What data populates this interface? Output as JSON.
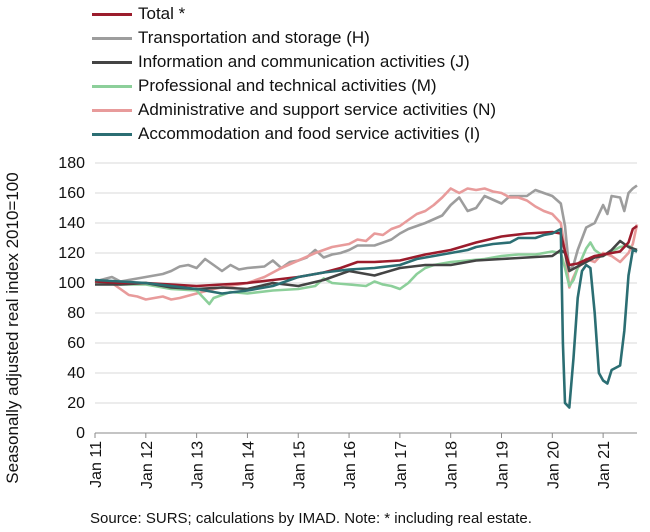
{
  "chart_data": {
    "type": "line",
    "ylabel": "Seasonally adjusted real index 2010=100",
    "xlabel": "",
    "ylim": [
      0,
      180
    ],
    "yticks": [
      "0",
      "20",
      "40",
      "60",
      "80",
      "100",
      "120",
      "140",
      "160",
      "180"
    ],
    "xticks": [
      "Jan 11",
      "Jan 12",
      "Jan 13",
      "Jan 14",
      "Jan 15",
      "Jan 16",
      "Jan 17",
      "Jan 18",
      "Jan 19",
      "Jan 20",
      "Jan 21"
    ],
    "x_range_months": [
      0,
      128
    ],
    "grid": "horizontal",
    "legend_position": "top",
    "series": [
      {
        "name": "Total *",
        "color": "#9b1c2c",
        "points": [
          [
            0,
            101
          ],
          [
            6,
            100
          ],
          [
            12,
            100
          ],
          [
            18,
            99
          ],
          [
            24,
            98
          ],
          [
            30,
            99
          ],
          [
            36,
            100
          ],
          [
            42,
            102
          ],
          [
            48,
            104
          ],
          [
            54,
            107
          ],
          [
            58,
            110
          ],
          [
            62,
            114
          ],
          [
            66,
            114
          ],
          [
            72,
            115
          ],
          [
            78,
            119
          ],
          [
            84,
            122
          ],
          [
            90,
            127
          ],
          [
            96,
            131
          ],
          [
            102,
            133
          ],
          [
            108,
            134
          ],
          [
            110,
            133
          ],
          [
            111,
            121
          ],
          [
            112,
            112
          ],
          [
            114,
            113
          ],
          [
            118,
            118
          ],
          [
            122,
            120
          ],
          [
            124,
            121
          ],
          [
            126,
            127
          ],
          [
            127,
            136
          ],
          [
            128,
            138
          ]
        ]
      },
      {
        "name": "Transportation and storage (H)",
        "color": "#9d9d9d",
        "points": [
          [
            0,
            101
          ],
          [
            4,
            104
          ],
          [
            6,
            101
          ],
          [
            10,
            103
          ],
          [
            12,
            104
          ],
          [
            16,
            106
          ],
          [
            18,
            108
          ],
          [
            20,
            111
          ],
          [
            22,
            112
          ],
          [
            24,
            110
          ],
          [
            26,
            116
          ],
          [
            28,
            112
          ],
          [
            30,
            108
          ],
          [
            32,
            112
          ],
          [
            34,
            109
          ],
          [
            36,
            110
          ],
          [
            40,
            111
          ],
          [
            42,
            115
          ],
          [
            44,
            110
          ],
          [
            46,
            114
          ],
          [
            48,
            115
          ],
          [
            50,
            117
          ],
          [
            52,
            122
          ],
          [
            54,
            117
          ],
          [
            56,
            119
          ],
          [
            58,
            120
          ],
          [
            60,
            122
          ],
          [
            62,
            125
          ],
          [
            66,
            125
          ],
          [
            70,
            129
          ],
          [
            72,
            133
          ],
          [
            74,
            136
          ],
          [
            76,
            138
          ],
          [
            78,
            140
          ],
          [
            82,
            145
          ],
          [
            84,
            152
          ],
          [
            86,
            157
          ],
          [
            88,
            148
          ],
          [
            90,
            150
          ],
          [
            92,
            158
          ],
          [
            96,
            153
          ],
          [
            98,
            158
          ],
          [
            102,
            158
          ],
          [
            104,
            162
          ],
          [
            106,
            160
          ],
          [
            108,
            158
          ],
          [
            110,
            153
          ],
          [
            111,
            138
          ],
          [
            112,
            108
          ],
          [
            113,
            112
          ],
          [
            114,
            122
          ],
          [
            116,
            137
          ],
          [
            118,
            140
          ],
          [
            120,
            152
          ],
          [
            121,
            146
          ],
          [
            122,
            158
          ],
          [
            124,
            157
          ],
          [
            125,
            148
          ],
          [
            126,
            160
          ],
          [
            127,
            163
          ],
          [
            128,
            165
          ]
        ]
      },
      {
        "name": "Information and communication activities (J)",
        "color": "#444444",
        "points": [
          [
            0,
            99
          ],
          [
            6,
            99
          ],
          [
            12,
            100
          ],
          [
            18,
            97
          ],
          [
            24,
            96
          ],
          [
            30,
            97
          ],
          [
            36,
            96
          ],
          [
            42,
            100
          ],
          [
            48,
            98
          ],
          [
            54,
            102
          ],
          [
            60,
            108
          ],
          [
            66,
            105
          ],
          [
            72,
            110
          ],
          [
            78,
            112
          ],
          [
            84,
            112
          ],
          [
            90,
            115
          ],
          [
            96,
            116
          ],
          [
            102,
            117
          ],
          [
            108,
            118
          ],
          [
            110,
            122
          ],
          [
            111,
            120
          ],
          [
            112,
            108
          ],
          [
            114,
            111
          ],
          [
            118,
            117
          ],
          [
            120,
            118
          ],
          [
            122,
            122
          ],
          [
            124,
            128
          ],
          [
            126,
            124
          ],
          [
            128,
            122
          ]
        ]
      },
      {
        "name": "Professional and technical activities (M)",
        "color": "#8ccf9a",
        "points": [
          [
            0,
            101
          ],
          [
            6,
            99
          ],
          [
            12,
            99
          ],
          [
            18,
            96
          ],
          [
            24,
            95
          ],
          [
            26,
            89
          ],
          [
            27,
            86
          ],
          [
            28,
            90
          ],
          [
            30,
            92
          ],
          [
            32,
            94
          ],
          [
            36,
            93
          ],
          [
            42,
            95
          ],
          [
            48,
            96
          ],
          [
            52,
            98
          ],
          [
            54,
            103
          ],
          [
            56,
            100
          ],
          [
            60,
            99
          ],
          [
            64,
            98
          ],
          [
            66,
            101
          ],
          [
            68,
            99
          ],
          [
            70,
            98
          ],
          [
            72,
            96
          ],
          [
            74,
            100
          ],
          [
            76,
            106
          ],
          [
            78,
            110
          ],
          [
            80,
            112
          ],
          [
            84,
            114
          ],
          [
            88,
            115
          ],
          [
            92,
            116
          ],
          [
            96,
            118
          ],
          [
            100,
            119
          ],
          [
            104,
            119
          ],
          [
            108,
            121
          ],
          [
            110,
            120
          ],
          [
            111,
            110
          ],
          [
            112,
            98
          ],
          [
            113,
            102
          ],
          [
            114,
            110
          ],
          [
            116,
            123
          ],
          [
            117,
            127
          ],
          [
            118,
            122
          ],
          [
            120,
            118
          ],
          [
            122,
            121
          ],
          [
            124,
            124
          ],
          [
            126,
            125
          ],
          [
            128,
            121
          ]
        ]
      },
      {
        "name": "Administrative and support service activities (N)",
        "color": "#e89b9b",
        "points": [
          [
            0,
            101
          ],
          [
            4,
            100
          ],
          [
            6,
            96
          ],
          [
            8,
            92
          ],
          [
            10,
            91
          ],
          [
            12,
            89
          ],
          [
            14,
            90
          ],
          [
            16,
            91
          ],
          [
            18,
            89
          ],
          [
            20,
            90
          ],
          [
            24,
            93
          ],
          [
            28,
            96
          ],
          [
            32,
            98
          ],
          [
            36,
            100
          ],
          [
            40,
            104
          ],
          [
            44,
            110
          ],
          [
            48,
            115
          ],
          [
            52,
            120
          ],
          [
            56,
            124
          ],
          [
            60,
            126
          ],
          [
            62,
            129
          ],
          [
            64,
            128
          ],
          [
            66,
            133
          ],
          [
            68,
            132
          ],
          [
            70,
            136
          ],
          [
            72,
            138
          ],
          [
            74,
            142
          ],
          [
            76,
            146
          ],
          [
            78,
            148
          ],
          [
            80,
            152
          ],
          [
            82,
            157
          ],
          [
            84,
            163
          ],
          [
            86,
            160
          ],
          [
            88,
            163
          ],
          [
            90,
            162
          ],
          [
            92,
            163
          ],
          [
            94,
            161
          ],
          [
            96,
            160
          ],
          [
            98,
            157
          ],
          [
            100,
            157
          ],
          [
            102,
            155
          ],
          [
            104,
            151
          ],
          [
            106,
            148
          ],
          [
            108,
            146
          ],
          [
            110,
            140
          ],
          [
            111,
            122
          ],
          [
            112,
            97
          ],
          [
            113,
            104
          ],
          [
            114,
            110
          ],
          [
            116,
            116
          ],
          [
            118,
            114
          ],
          [
            120,
            120
          ],
          [
            122,
            118
          ],
          [
            124,
            114
          ],
          [
            126,
            120
          ],
          [
            127,
            126
          ],
          [
            128,
            139
          ]
        ]
      },
      {
        "name": "Accommodation and food service activities (I)",
        "color": "#2b6e73",
        "points": [
          [
            0,
            102
          ],
          [
            6,
            101
          ],
          [
            12,
            100
          ],
          [
            18,
            98
          ],
          [
            24,
            96
          ],
          [
            30,
            93
          ],
          [
            36,
            95
          ],
          [
            42,
            98
          ],
          [
            48,
            104
          ],
          [
            54,
            107
          ],
          [
            60,
            109
          ],
          [
            66,
            110
          ],
          [
            72,
            112
          ],
          [
            76,
            116
          ],
          [
            80,
            118
          ],
          [
            84,
            120
          ],
          [
            88,
            122
          ],
          [
            90,
            124
          ],
          [
            94,
            126
          ],
          [
            98,
            127
          ],
          [
            100,
            130
          ],
          [
            104,
            130
          ],
          [
            106,
            132
          ],
          [
            108,
            133
          ],
          [
            110,
            136
          ],
          [
            110.5,
            60
          ],
          [
            111,
            20
          ],
          [
            112,
            17
          ],
          [
            113,
            50
          ],
          [
            114,
            90
          ],
          [
            115,
            108
          ],
          [
            116,
            112
          ],
          [
            117,
            110
          ],
          [
            118,
            80
          ],
          [
            119,
            40
          ],
          [
            120,
            35
          ],
          [
            121,
            33
          ],
          [
            122,
            42
          ],
          [
            124,
            45
          ],
          [
            125,
            68
          ],
          [
            126,
            105
          ],
          [
            127,
            122
          ],
          [
            128,
            121
          ]
        ]
      }
    ]
  },
  "legend": {
    "items": [
      {
        "label": "Total *",
        "color": "#9b1c2c"
      },
      {
        "label": "Transportation and storage (H)",
        "color": "#9d9d9d"
      },
      {
        "label": "Information and communication activities (J)",
        "color": "#444444"
      },
      {
        "label": "Professional and technical activities (M)",
        "color": "#8ccf9a"
      },
      {
        "label": "Administrative and support service activities (N)",
        "color": "#e89b9b"
      },
      {
        "label": "Accommodation and food service activities (I)",
        "color": "#2b6e73"
      }
    ]
  },
  "source_note": "Source:  SURS; calculations by IMAD. Note: * including real estate."
}
